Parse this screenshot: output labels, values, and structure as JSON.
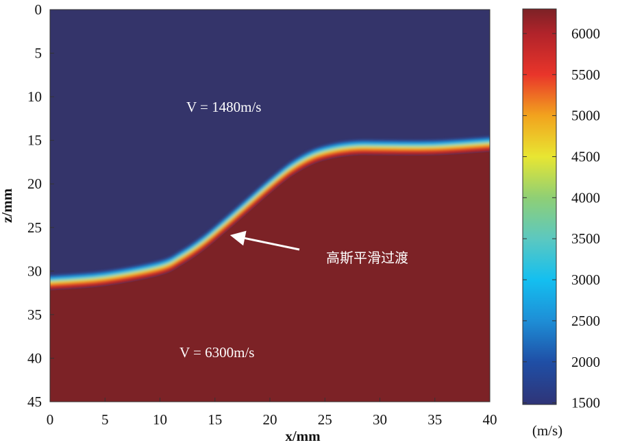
{
  "chart_data": {
    "type": "heatmap",
    "title": "",
    "xlabel": "x/mm",
    "ylabel": "z/mm",
    "xlim": [
      0,
      40
    ],
    "zlim": [
      0,
      45
    ],
    "x_ticks": [
      0,
      5,
      10,
      15,
      20,
      25,
      30,
      35,
      40
    ],
    "z_ticks": [
      0,
      5,
      10,
      15,
      20,
      25,
      30,
      35,
      40,
      45
    ],
    "interface": {
      "description": "Smooth interface between upper and lower velocity layers (x in mm, z in mm)",
      "x": [
        0,
        5,
        10,
        12,
        14,
        16,
        18,
        20,
        22,
        24,
        26,
        28,
        30,
        35,
        40
      ],
      "z": [
        31.5,
        31.0,
        29.8,
        28.6,
        26.9,
        24.8,
        22.6,
        20.4,
        18.4,
        17.0,
        16.3,
        16.0,
        16.0,
        16.0,
        15.6
      ]
    },
    "layers": [
      {
        "label": "V = 1480m/s",
        "velocity": 1480,
        "color": "#34346a"
      },
      {
        "label": "V = 6300m/s",
        "velocity": 6300,
        "color": "#7c2226"
      }
    ],
    "annotation": {
      "text": "高斯平滑过渡",
      "points_to": [
        16,
        25.8
      ]
    },
    "colorbar": {
      "unit_label": "(m/s)",
      "range": [
        1480,
        6300
      ],
      "ticks": [
        1500,
        2000,
        2500,
        3000,
        3500,
        4000,
        4500,
        5000,
        5500,
        6000
      ],
      "stops": [
        {
          "v": 1480,
          "color": "#2f3477"
        },
        {
          "v": 2000,
          "color": "#1f4fa6"
        },
        {
          "v": 2500,
          "color": "#1e8ed6"
        },
        {
          "v": 3000,
          "color": "#14bff0"
        },
        {
          "v": 3500,
          "color": "#5cc8c0"
        },
        {
          "v": 4000,
          "color": "#8fcf75"
        },
        {
          "v": 4500,
          "color": "#e8e632"
        },
        {
          "v": 5000,
          "color": "#f2a31e"
        },
        {
          "v": 5500,
          "color": "#e9352a"
        },
        {
          "v": 6000,
          "color": "#b1232a"
        },
        {
          "v": 6300,
          "color": "#7c2226"
        }
      ]
    }
  }
}
